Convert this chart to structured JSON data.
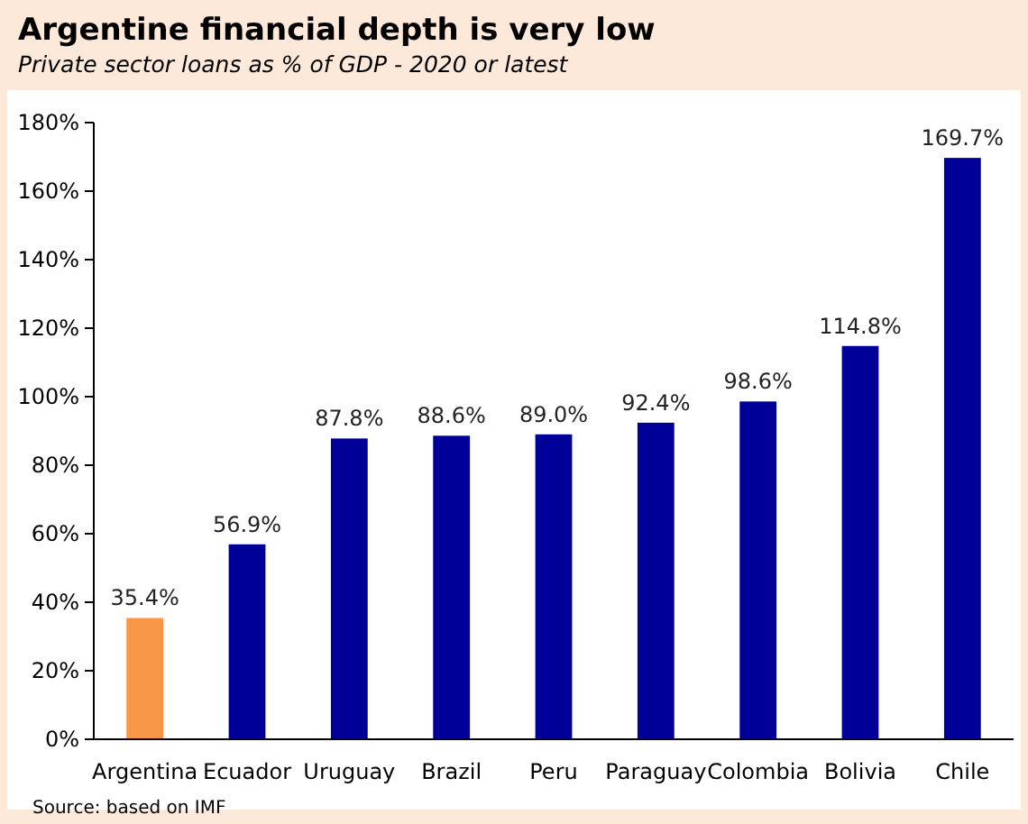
{
  "chart_data": {
    "type": "bar",
    "title": "Argentine financial depth is very low",
    "subtitle": "Private sector loans as % of GDP - 2020 or latest",
    "categories": [
      "Argentina",
      "Ecuador",
      "Uruguay",
      "Brazil",
      "Peru",
      "Paraguay",
      "Colombia",
      "Bolivia",
      "Chile"
    ],
    "values": [
      35.4,
      56.9,
      87.8,
      88.6,
      89.0,
      92.4,
      98.6,
      114.8,
      169.7
    ],
    "colors": [
      "#f79646",
      "#000099",
      "#000099",
      "#000099",
      "#000099",
      "#000099",
      "#000099",
      "#000099",
      "#000099"
    ],
    "value_labels": [
      "35.4%",
      "56.9%",
      "87.8%",
      "88.6%",
      "89.0%",
      "92.4%",
      "98.6%",
      "114.8%",
      "169.7%"
    ],
    "ylim": [
      0,
      180
    ],
    "yticks": [
      {
        "value": 0,
        "label": "0%"
      },
      {
        "value": 20,
        "label": "20%"
      },
      {
        "value": 40,
        "label": "40%"
      },
      {
        "value": 60,
        "label": "60%"
      },
      {
        "value": 80,
        "label": "80%"
      },
      {
        "value": 100,
        "label": "100%"
      },
      {
        "value": 120,
        "label": "120%"
      },
      {
        "value": 140,
        "label": "140%"
      },
      {
        "value": 160,
        "label": "160%"
      },
      {
        "value": 180,
        "label": "180%"
      }
    ],
    "grid": false,
    "annotations": [
      "Source: based on IMF"
    ]
  }
}
